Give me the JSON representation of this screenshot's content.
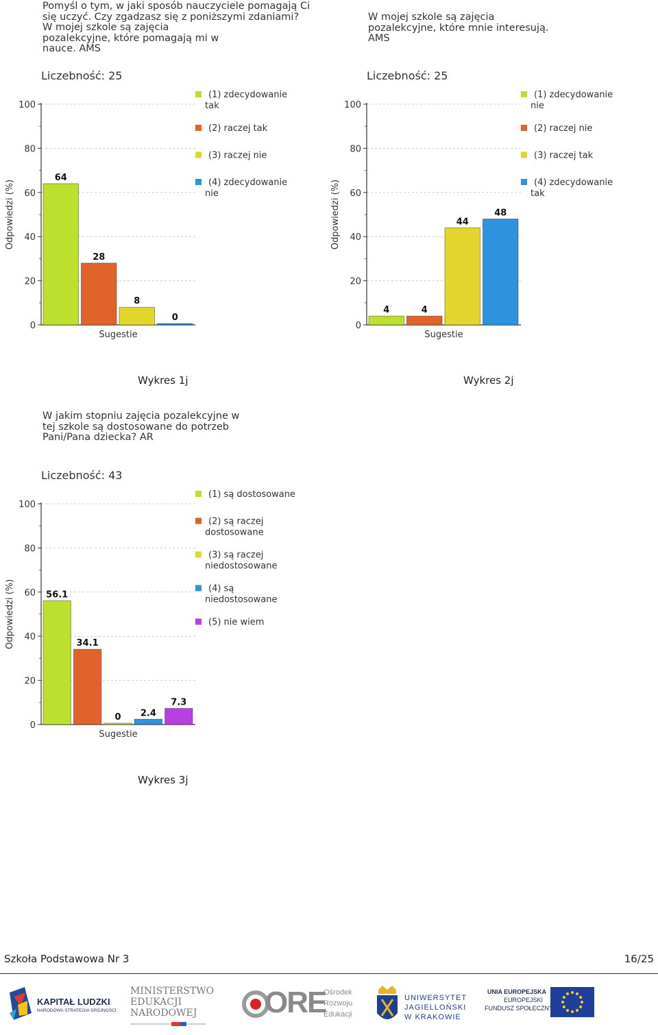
{
  "charts": [
    {
      "question": "Pomyśl o tym, w jaki sposób nauczyciele pomagają Ci\nsię uczyć. Czy zgadzasz się z poniższymi zdaniami?\nW mojej szkole są zajęcia\npozalekcyjne, które pomagają mi w\nnauce. AMS",
      "count_label": "Liczebność: 25",
      "caption": "Wykres 1j"
    },
    {
      "question": "W mojej szkole są zajęcia\npozalekcyjne, które mnie interesują.\nAMS",
      "count_label": "Liczebność: 25",
      "caption": "Wykres 2j"
    },
    {
      "question": "W jakim stopniu zajęcia pozalekcyjne w\ntej szkole są dostosowane do potrzeb\nPani/Pana dziecka? AR",
      "count_label": "Liczebność: 43",
      "caption": "Wykres 3j"
    }
  ],
  "chart_data": [
    {
      "type": "bar",
      "ylabel": "Odpowiedzi (%)",
      "xlabel": "Sugestie",
      "ylim": [
        0,
        100
      ],
      "yticks": [
        "0",
        "20",
        "40",
        "60",
        "80",
        "100"
      ],
      "grid": true,
      "legend_position": "right",
      "series": [
        {
          "name": "(1) zdecydowanie tak",
          "legend_lines": [
            "(1) zdecydowanie",
            "tak"
          ],
          "value": 64,
          "label": "64",
          "color": "#bde02e"
        },
        {
          "name": "(2) raczej tak",
          "legend_lines": [
            "(2) raczej tak"
          ],
          "value": 28,
          "label": "28",
          "color": "#e0632c"
        },
        {
          "name": "(3) raczej nie",
          "legend_lines": [
            "(3) raczej nie"
          ],
          "value": 8,
          "label": "8",
          "color": "#e2d52c"
        },
        {
          "name": "(4) zdecydowanie nie",
          "legend_lines": [
            "(4) zdecydowanie",
            "nie"
          ],
          "value": 0,
          "label": "0",
          "color": "#2e93dd"
        }
      ]
    },
    {
      "type": "bar",
      "ylabel": "Odpowiedzi (%)",
      "xlabel": "Sugestie",
      "ylim": [
        0,
        100
      ],
      "yticks": [
        "0",
        "20",
        "40",
        "60",
        "80",
        "100"
      ],
      "grid": true,
      "legend_position": "right",
      "series": [
        {
          "name": "(1) zdecydowanie nie",
          "legend_lines": [
            "(1) zdecydowanie",
            "nie"
          ],
          "value": 4,
          "label": "4",
          "color": "#bde02e"
        },
        {
          "name": "(2) raczej nie",
          "legend_lines": [
            "(2) raczej nie"
          ],
          "value": 4,
          "label": "4",
          "color": "#e0632c"
        },
        {
          "name": "(3) raczej tak",
          "legend_lines": [
            "(3) raczej tak"
          ],
          "value": 44,
          "label": "44",
          "color": "#e2d52c"
        },
        {
          "name": "(4) zdecydowanie tak",
          "legend_lines": [
            "(4) zdecydowanie",
            "tak"
          ],
          "value": 48,
          "label": "48",
          "color": "#2e93dd"
        }
      ]
    },
    {
      "type": "bar",
      "ylabel": "Odpowiedzi (%)",
      "xlabel": "Sugestie",
      "ylim": [
        0,
        100
      ],
      "yticks": [
        "0",
        "20",
        "40",
        "60",
        "80",
        "100"
      ],
      "grid": true,
      "legend_position": "right",
      "series": [
        {
          "name": "(1) są dostosowane",
          "legend_lines": [
            "(1) są dostosowane"
          ],
          "value": 56.1,
          "label": "56.1",
          "color": "#bde02e"
        },
        {
          "name": "(2) są raczej dostosowane",
          "legend_lines": [
            "(2) są raczej",
            "dostosowane"
          ],
          "value": 34.1,
          "label": "34.1",
          "color": "#e0632c"
        },
        {
          "name": "(3) są raczej niedostosowane",
          "legend_lines": [
            "(3) są raczej",
            "niedostosowane"
          ],
          "value": 0,
          "label": "0",
          "color": "#e2d52c"
        },
        {
          "name": "(4) są niedostosowane",
          "legend_lines": [
            "(4) są",
            "niedostosowane"
          ],
          "value": 2.4,
          "label": "2.4",
          "color": "#2e93dd"
        },
        {
          "name": "(5) nie wiem",
          "legend_lines": [
            "(5) nie wiem"
          ],
          "value": 7.3,
          "label": "7.3",
          "color": "#b83fe0"
        }
      ]
    }
  ],
  "footer": {
    "school": "Szkoła Podstawowa Nr 3",
    "page": "16/25"
  },
  "logos": {
    "kapital_title": "KAPITAŁ LUDZKI",
    "kapital_sub": "NARODOWA STRATEGIA SPÓJNOŚCI",
    "men_1": "MINISTERSTWO",
    "men_2": "EDUKACJI",
    "men_3": "NARODOWEJ",
    "ore_word": "ORE",
    "ore_1": "Ośrodek",
    "ore_2": "Rozwoju",
    "ore_3": "Edukacji",
    "uj_1": "UNIWERSYTET",
    "uj_2": "JAGIELLOŃSKI",
    "uj_3": "W KRAKOWIE",
    "ue_1": "UNIA EUROPEJSKA",
    "ue_2": "EUROPEJSKI",
    "ue_3": "FUNDUSZ SPOŁECZNY"
  }
}
